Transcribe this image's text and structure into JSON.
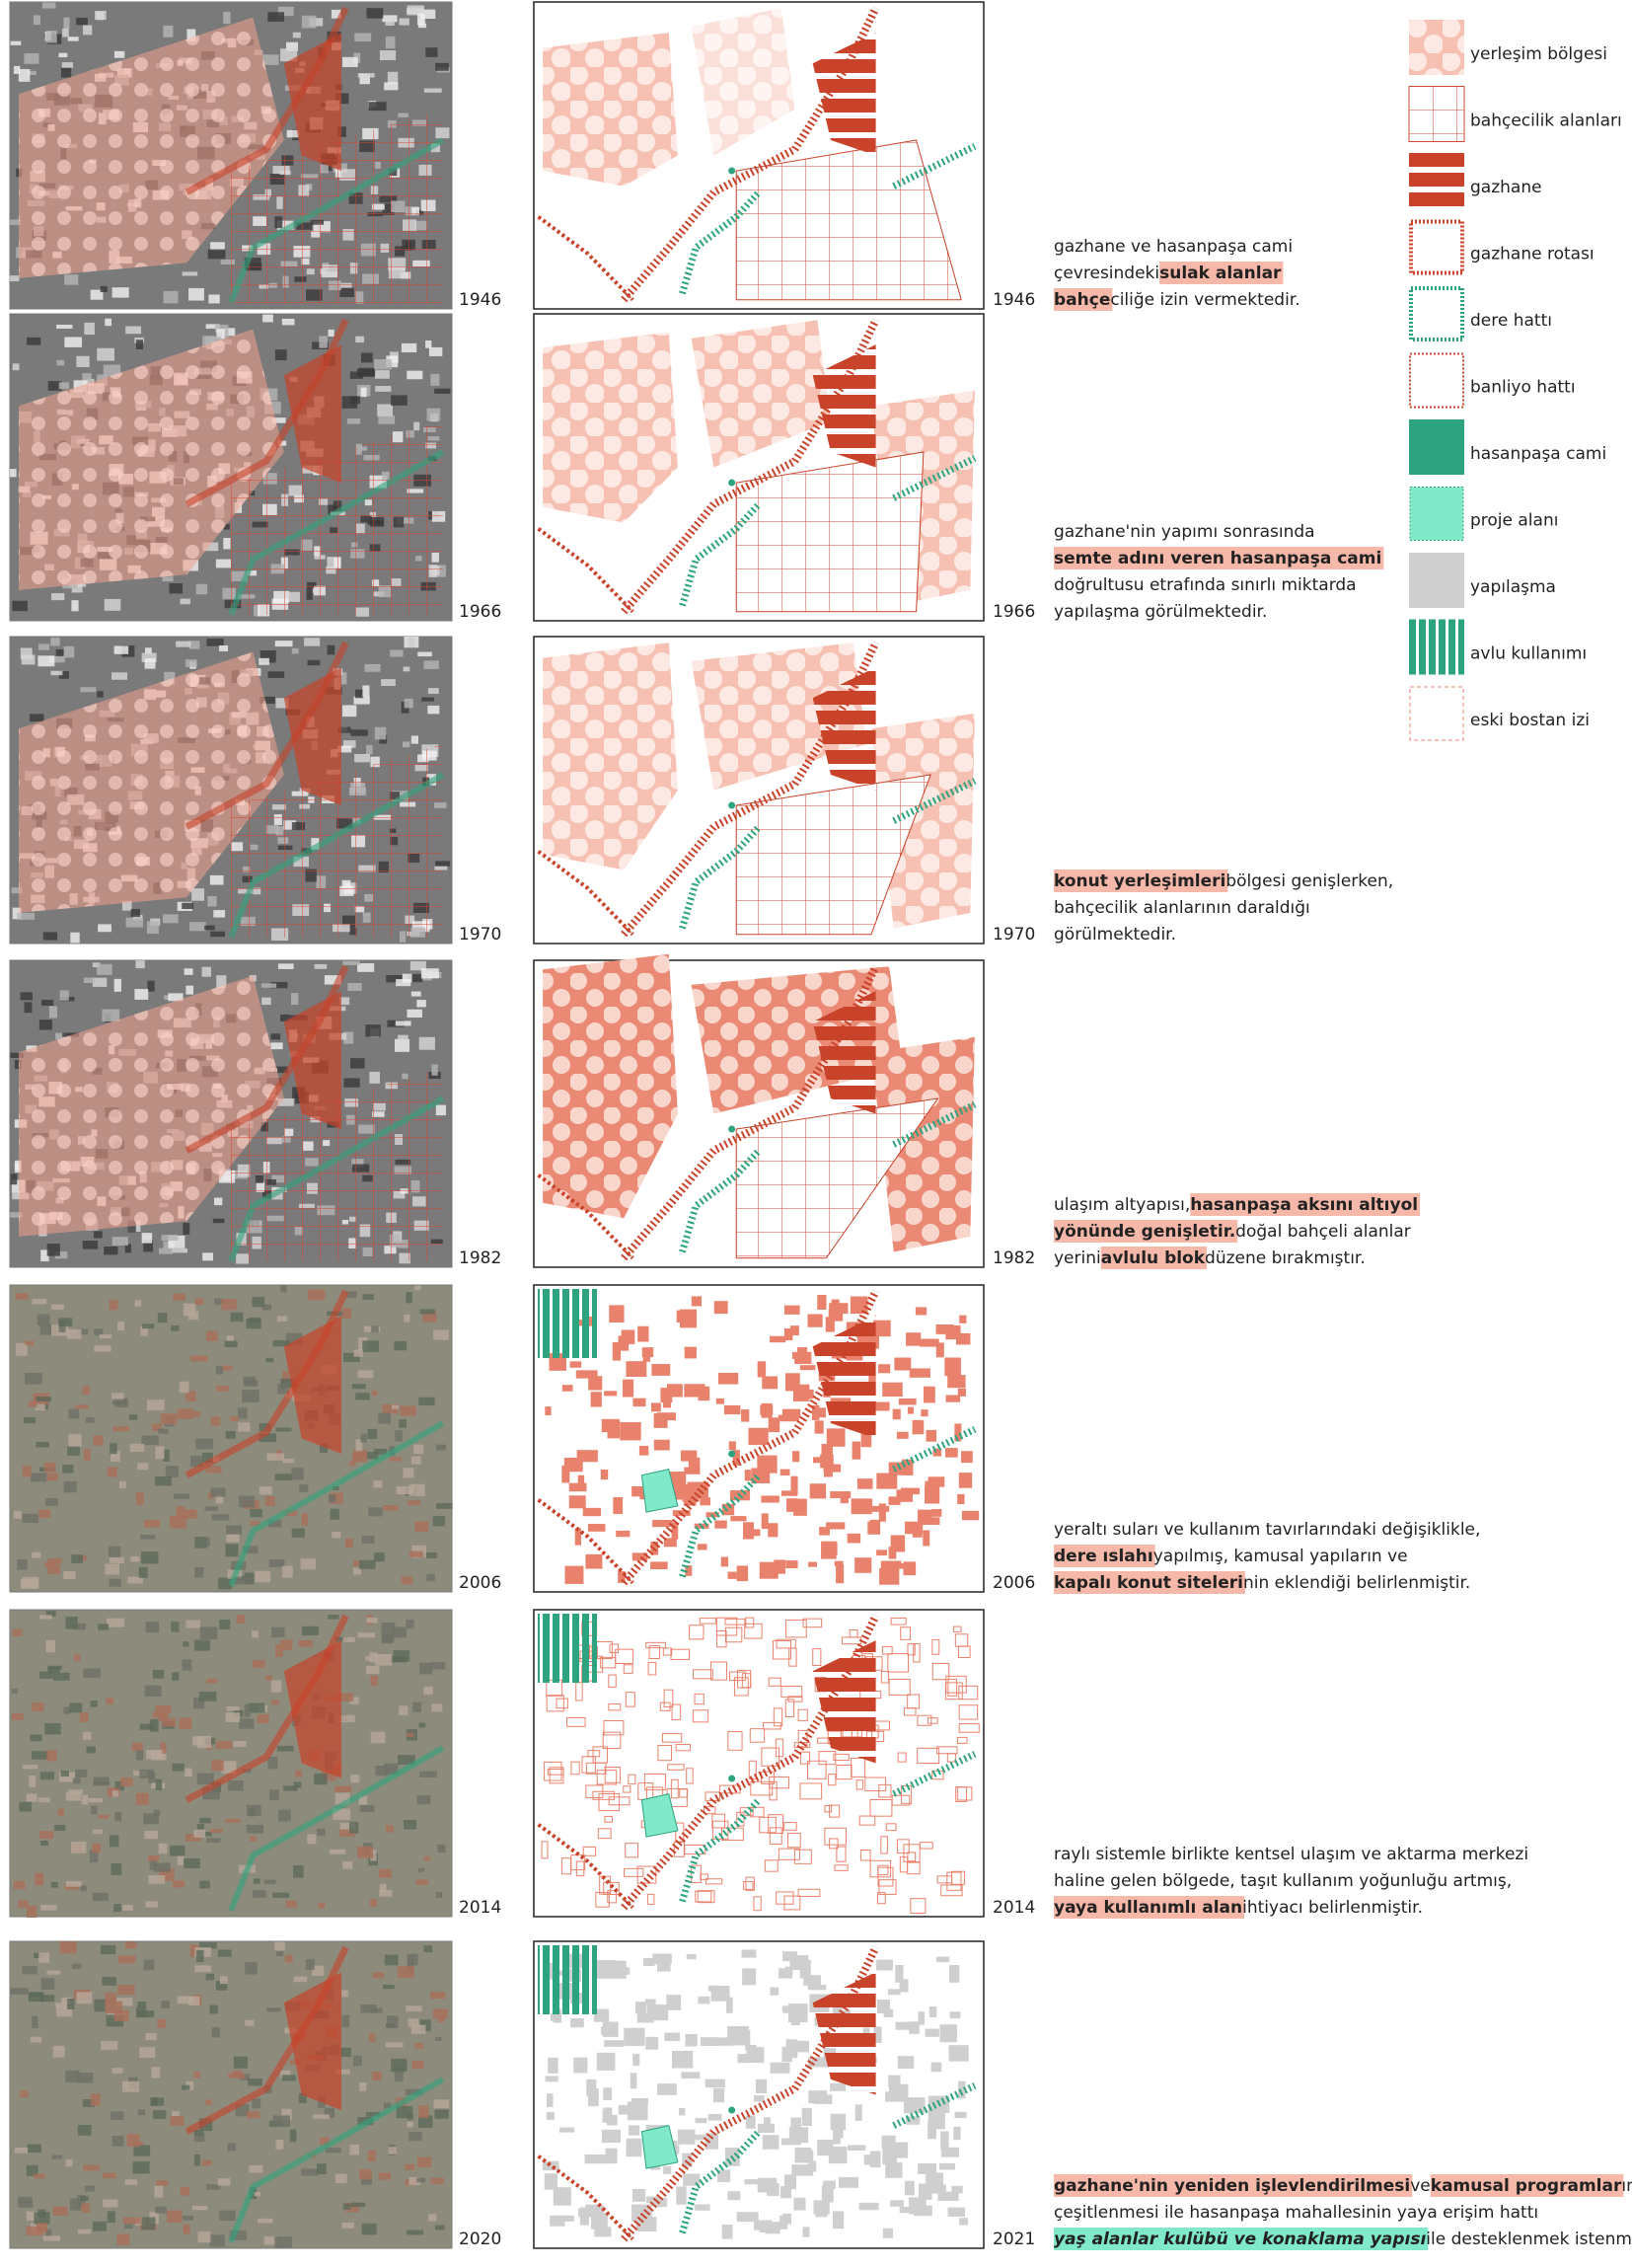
{
  "legend": [
    "yerleşim bölgesi",
    "bahçecilik alanları",
    "gazhane",
    "gazhane rotası",
    "dere hattı",
    "banliyo hattı",
    "hasanpaşa cami",
    "proje alanı",
    "yapılaşma",
    "avlu kullanımı",
    "eski bostan izi"
  ],
  "rows": [
    {
      "photo_year": "1946",
      "map_year": "1946",
      "text": [
        [
          {
            "text": "gazhane ve hasanpaşa cami"
          }
        ],
        [
          {
            "text": "çevresindeki "
          },
          {
            "text": "sulak alanlar",
            "highlight": "#f6b8a8"
          }
        ],
        [
          {
            "text": "bahçe",
            "highlight": "#f6b8a8"
          },
          {
            "text": "ciliğe izin vermektedir."
          }
        ]
      ]
    },
    {
      "photo_year": "1966",
      "map_year": "1966",
      "text": [
        [
          {
            "text": "gazhane'nin yapımı sonrasında"
          }
        ],
        [
          {
            "text": "semte adını veren hasanpaşa cami",
            "highlight": "#f6b8a8"
          }
        ],
        [
          {
            "text": "doğrultusu etrafında sınırlı miktarda"
          }
        ],
        [
          {
            "text": "yapılaşma görülmektedir."
          }
        ]
      ]
    },
    {
      "photo_year": "1970",
      "map_year": "1970",
      "text": [
        [
          {
            "text": "konut yerleşimleri",
            "highlight": "#f6b8a8"
          },
          {
            "text": " bölgesi genişlerken,"
          }
        ],
        [
          {
            "text": "bahçecilik alanlarının daraldığı"
          }
        ],
        [
          {
            "text": "görülmektedir."
          }
        ]
      ]
    },
    {
      "photo_year": "1982",
      "map_year": "1982",
      "text": [
        [
          {
            "text": "ulaşım altyapısı, "
          },
          {
            "text": "hasanpaşa aksını altıyol",
            "highlight": "#f6b8a8"
          }
        ],
        [
          {
            "text": "yönünde genişletir.",
            "highlight": "#f6b8a8"
          },
          {
            "text": " doğal bahçeli alanlar"
          }
        ],
        [
          {
            "text": "yerini "
          },
          {
            "text": "avlulu blok",
            "highlight": "#f6b8a8"
          },
          {
            "text": " düzene bırakmıştır."
          }
        ]
      ]
    },
    {
      "photo_year": "2006",
      "map_year": "2006",
      "text": [
        [
          {
            "text": "yeraltı suları ve kullanım tavırlarındaki değişiklikle,"
          }
        ],
        [
          {
            "text": "dere ıslahı",
            "highlight": "#f6b8a8"
          },
          {
            "text": " yapılmış, kamusal yapıların ve"
          }
        ],
        [
          {
            "text": "kapalı konut siteleri",
            "highlight": "#f6b8a8"
          },
          {
            "text": "nin eklendiği belirlenmiştir."
          }
        ]
      ]
    },
    {
      "photo_year": "2014",
      "map_year": "2014",
      "text": [
        [
          {
            "text": "raylı sistemle birlikte kentsel ulaşım ve aktarma merkezi"
          }
        ],
        [
          {
            "text": "haline gelen bölgede, taşıt kullanım yoğunluğu artmış,"
          }
        ],
        [
          {
            "text": "yaya kullanımlı alan",
            "highlight": "#f6b8a8"
          },
          {
            "text": " ihtiyacı belirlenmiştir."
          }
        ]
      ]
    },
    {
      "photo_year": "2020",
      "map_year": "2021",
      "text": [
        [
          {
            "text": "gazhane'nin yeniden işlevlendirilmesi",
            "highlight": "#f6b8a8"
          },
          {
            "text": " ve "
          },
          {
            "text": "kamusal programlar",
            "highlight": "#f6b8a8"
          },
          {
            "text": "ın"
          }
        ],
        [
          {
            "text": "çeşitlenmesi ile hasanpaşa mahallesinin yaya erişim hattı"
          }
        ],
        [
          {
            "text": "yaş alanlar kulübü ve konaklama yapısı",
            "highlight": "#7fe9c9"
          },
          {
            "text": " ile desteklenmek istenmiştir."
          }
        ]
      ]
    }
  ]
}
